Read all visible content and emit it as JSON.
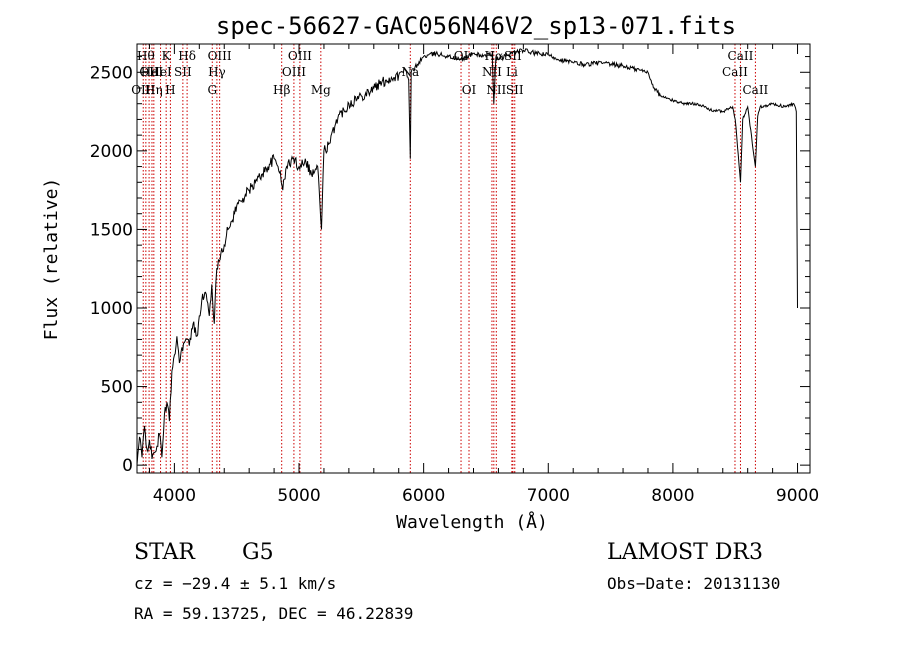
{
  "chart_data": {
    "type": "line",
    "title": "spec-56627-GAC056N46V2_sp13-071.fits",
    "xlabel": "Wavelength (Å)",
    "ylabel": "Flux (relative)",
    "xlim": [
      3700,
      9100
    ],
    "ylim": [
      -50,
      2680
    ],
    "x_ticks": [
      4000,
      5000,
      6000,
      7000,
      8000,
      9000
    ],
    "y_ticks": [
      0,
      500,
      1000,
      1500,
      2000,
      2500
    ],
    "series": [
      {
        "name": "flux",
        "x": [
          3700,
          3720,
          3740,
          3760,
          3780,
          3800,
          3820,
          3840,
          3860,
          3880,
          3900,
          3920,
          3940,
          3960,
          3980,
          4000,
          4020,
          4040,
          4060,
          4080,
          4100,
          4120,
          4150,
          4180,
          4200,
          4220,
          4250,
          4280,
          4300,
          4320,
          4340,
          4360,
          4380,
          4400,
          4430,
          4460,
          4500,
          4550,
          4600,
          4650,
          4700,
          4750,
          4800,
          4850,
          4870,
          4900,
          4950,
          5000,
          5050,
          5100,
          5150,
          5180,
          5200,
          5250,
          5300,
          5400,
          5500,
          5600,
          5700,
          5800,
          5850,
          5880,
          5893,
          5900,
          5950,
          6000,
          6100,
          6200,
          6300,
          6400,
          6500,
          6550,
          6563,
          6580,
          6600,
          6700,
          6800,
          6900,
          7000,
          7100,
          7200,
          7300,
          7400,
          7500,
          7600,
          7700,
          7800,
          7850,
          7900,
          8000,
          8100,
          8200,
          8300,
          8400,
          8480,
          8500,
          8542,
          8560,
          8600,
          8662,
          8680,
          8700,
          8800,
          8900,
          8970,
          8990,
          9000
        ],
        "y": [
          0,
          180,
          50,
          250,
          100,
          160,
          40,
          80,
          120,
          200,
          50,
          320,
          400,
          280,
          600,
          700,
          820,
          650,
          750,
          780,
          800,
          760,
          900,
          820,
          950,
          1050,
          1100,
          950,
          1150,
          900,
          1250,
          1300,
          1380,
          1400,
          1500,
          1550,
          1650,
          1700,
          1750,
          1800,
          1850,
          1900,
          1950,
          1870,
          1750,
          1900,
          1950,
          1900,
          1950,
          1850,
          1900,
          1500,
          2000,
          2050,
          2200,
          2300,
          2350,
          2400,
          2450,
          2480,
          2520,
          2450,
          1950,
          2500,
          2550,
          2600,
          2620,
          2600,
          2580,
          2620,
          2600,
          2620,
          2300,
          2600,
          2580,
          2620,
          2640,
          2620,
          2610,
          2580,
          2560,
          2550,
          2560,
          2550,
          2540,
          2520,
          2500,
          2400,
          2350,
          2320,
          2300,
          2300,
          2260,
          2250,
          2280,
          2200,
          1800,
          2200,
          2280,
          1900,
          2220,
          2280,
          2300,
          2280,
          2300,
          2250,
          1000
        ]
      }
    ],
    "lines": [
      {
        "x": 3750,
        "label": "OIII",
        "row": 3
      },
      {
        "x": 3771,
        "label": "Hθ",
        "row": 1
      },
      {
        "x": 3797,
        "label": "OII",
        "row": 2
      },
      {
        "x": 3820,
        "label": "HeI",
        "row": 2
      },
      {
        "x": 3835,
        "label": "Hη",
        "row": 3
      },
      {
        "x": 3889,
        "label": "HeI",
        "row": 2
      },
      {
        "x": 3934,
        "label": "K",
        "row": 1
      },
      {
        "x": 3968,
        "label": "H",
        "row": 3
      },
      {
        "x": 4068,
        "label": "SII",
        "row": 2
      },
      {
        "x": 4102,
        "label": "Hδ",
        "row": 1
      },
      {
        "x": 4304,
        "label": "G",
        "row": 3
      },
      {
        "x": 4341,
        "label": "Hγ",
        "row": 2
      },
      {
        "x": 4363,
        "label": "OIII",
        "row": 1
      },
      {
        "x": 4861,
        "label": "Hβ",
        "row": 3
      },
      {
        "x": 4959,
        "label": "OIII",
        "row": 2
      },
      {
        "x": 5007,
        "label": "OIII",
        "row": 1
      },
      {
        "x": 5175,
        "label": "Mg",
        "row": 3
      },
      {
        "x": 5893,
        "label": "Na",
        "row": 2
      },
      {
        "x": 6300,
        "label": "OI",
        "row": 1
      },
      {
        "x": 6364,
        "label": "OI",
        "row": 3
      },
      {
        "x": 6548,
        "label": "NII",
        "row": 2
      },
      {
        "x": 6563,
        "label": "Hα",
        "row": 1
      },
      {
        "x": 6583,
        "label": "NII",
        "row": 3
      },
      {
        "x": 6708,
        "label": "Li",
        "row": 2
      },
      {
        "x": 6716,
        "label": "SII",
        "row": 1
      },
      {
        "x": 6731,
        "label": "SII",
        "row": 3
      },
      {
        "x": 8498,
        "label": "CaII",
        "row": 2
      },
      {
        "x": 8542,
        "label": "CaII",
        "row": 1
      },
      {
        "x": 8662,
        "label": "CaII",
        "row": 3
      }
    ]
  },
  "footer": {
    "class_label": "STAR",
    "subclass": "G5",
    "survey": "LAMOST DR3",
    "cz": "cz = −29.4 ± 5.1 km/s",
    "obs_date": "Obs−Date: 20131130",
    "coords": "RA =  59.13725, DEC =  46.22839"
  },
  "colors": {
    "spectrum": "#000000",
    "line_markers": "#cc0000"
  }
}
